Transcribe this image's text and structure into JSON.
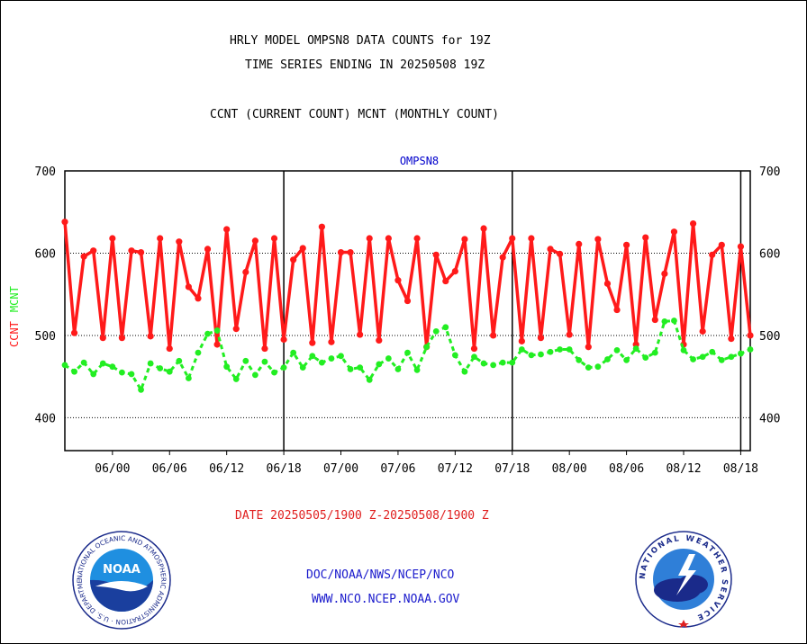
{
  "header": {
    "title_line1": "HRLY MODEL OMPSN8 DATA COUNTS for 19Z",
    "title_line2": "TIME SERIES ENDING IN 20250508 19Z",
    "subtitle": "CCNT (CURRENT COUNT) MCNT (MONTHLY COUNT)"
  },
  "footer": {
    "date_range": "DATE 20250505/1900 Z-20250508/1900 Z",
    "org_line": "DOC/NOAA/NWS/NCEP/NCO",
    "url_line": "WWW.NCO.NCEP.NOAA.GOV"
  },
  "logos": {
    "noaa_text": "NOAA",
    "noaa_ring_text": "NATIONAL OCEANIC AND ATMOSPHERIC ADMINISTRATION · U.S. DEPARTMENT OF COMMERCE",
    "nws_ring_text": "NATIONAL WEATHER SERVICE"
  },
  "colors": {
    "ccnt": "#ff1a1a",
    "mcnt": "#22ee22",
    "plot_label": "#0000cc",
    "footer_blue": "#1a1acc",
    "date_red": "#e02020"
  },
  "chart_data": {
    "type": "line",
    "title": "OMPSN8",
    "ylabel_left": "CCNT",
    "ylabel_right": "MCNT",
    "ylim": [
      360,
      700
    ],
    "yticks": [
      400,
      500,
      600,
      700
    ],
    "x_tick_labels": [
      "06/00",
      "06/06",
      "06/12",
      "06/18",
      "07/00",
      "07/06",
      "07/12",
      "07/18",
      "08/00",
      "08/06",
      "08/12",
      "08/18"
    ],
    "x_tick_hours": [
      5,
      11,
      17,
      23,
      29,
      35,
      41,
      47,
      53,
      59,
      65,
      71
    ],
    "x_range_hours": [
      0,
      72
    ],
    "day_boundaries_hours": [
      23,
      47,
      71
    ],
    "grid": "dotted horizontal at 400, 500, 600",
    "series": [
      {
        "name": "CCNT",
        "values": [
          638,
          503,
          596,
          603,
          497,
          618,
          497,
          603,
          601,
          499,
          618,
          484,
          614,
          559,
          545,
          605,
          489,
          629,
          508,
          577,
          615,
          484,
          618,
          495,
          592,
          606,
          491,
          632,
          492,
          601,
          601,
          501,
          618,
          494,
          618,
          567,
          542,
          618,
          486,
          598,
          566,
          578,
          617,
          484,
          630,
          500,
          595,
          618,
          493,
          618,
          497,
          605,
          599,
          501,
          611,
          486,
          617,
          563,
          531,
          610,
          489,
          619,
          519,
          575,
          626,
          489,
          636,
          505,
          598,
          610,
          496,
          608,
          500
        ]
      },
      {
        "name": "MCNT",
        "values": [
          464,
          456,
          467,
          453,
          466,
          462,
          455,
          453,
          434,
          466,
          460,
          456,
          469,
          448,
          479,
          502,
          506,
          462,
          447,
          469,
          452,
          468,
          455,
          461,
          479,
          461,
          475,
          467,
          472,
          475,
          459,
          461,
          446,
          465,
          472,
          459,
          479,
          458,
          486,
          505,
          510,
          476,
          456,
          474,
          466,
          464,
          467,
          467,
          483,
          476,
          477,
          480,
          483,
          483,
          470,
          461,
          462,
          471,
          482,
          470,
          484,
          473,
          479,
          517,
          518,
          482,
          471,
          474,
          480,
          470,
          474,
          478,
          483
        ]
      }
    ]
  }
}
